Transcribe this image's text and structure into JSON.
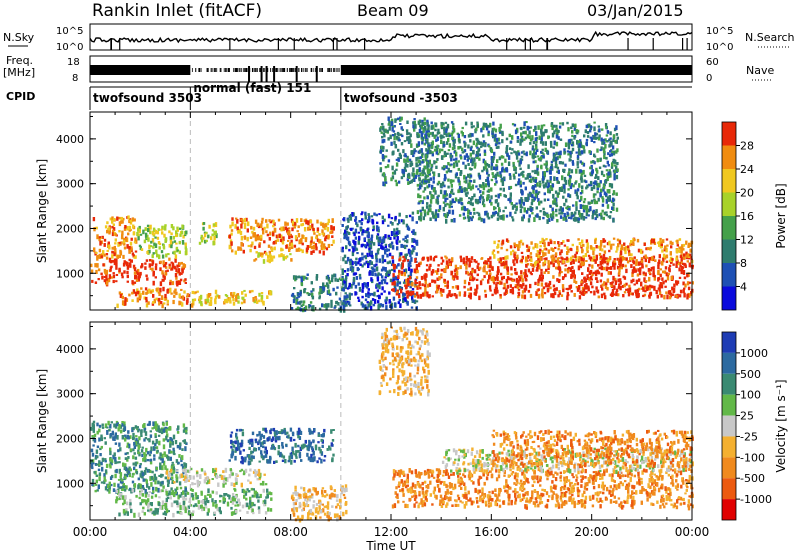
{
  "header": {
    "station": "Rankin Inlet (fitACF)",
    "beam": "Beam 09",
    "date": "03/Jan/2015"
  },
  "noise_panel": {
    "left_label": "N.Sky",
    "right_label": "N.Search",
    "left_ticks": [
      "10^5",
      "10^0"
    ],
    "right_ticks": [
      "10^5",
      "10^0"
    ]
  },
  "freq_panel": {
    "left_label_top": "Freq.",
    "left_label_bottom": "[MHz]",
    "left_ticks": [
      "18",
      "8"
    ],
    "right_label": "Nave",
    "right_ticks": [
      "60",
      "0"
    ]
  },
  "cpid_panel": {
    "label": "CPID",
    "modes": [
      {
        "name": "twofsound",
        "id": "3503",
        "start": 0.0,
        "end": 4.0
      },
      {
        "name": "normal (fast)",
        "id": "151",
        "start": 4.0,
        "end": 10.0
      },
      {
        "name": "twofsound",
        "id": "-3503",
        "start": 10.0,
        "end": 24.0
      }
    ]
  },
  "x_axis": {
    "label": "Time UT",
    "ticks": [
      "00:00",
      "04:00",
      "08:00",
      "12:00",
      "16:00",
      "20:00",
      "00:00"
    ],
    "range_hours": [
      0,
      24
    ]
  },
  "power_panel": {
    "ylabel": "Slant Range [km]",
    "yticks": [
      1000,
      2000,
      3000,
      4000
    ],
    "yrange": [
      180,
      4600
    ],
    "colorbar_label": "Power [dB]",
    "colorbar_ticks": [
      "4",
      "8",
      "12",
      "16",
      "20",
      "24",
      "28"
    ],
    "colors": [
      "#0a0adc",
      "#1e50b4",
      "#2e7c6e",
      "#44a04a",
      "#a8d22a",
      "#f0c820",
      "#f08c10",
      "#e82808"
    ]
  },
  "velocity_panel": {
    "ylabel": "Slant Range [km]",
    "yticks": [
      1000,
      2000,
      3000,
      4000
    ],
    "yrange": [
      180,
      4600
    ],
    "colorbar_label": "Velocity [m s⁻¹]",
    "colorbar_ticks": [
      "1000",
      "500",
      "100",
      "25",
      "-25",
      "-100",
      "-500",
      "-1000"
    ],
    "colors": [
      "#1e3cb4",
      "#2c6aa0",
      "#3a8a72",
      "#62b848",
      "#c8c8c8",
      "#f4b030",
      "#f08a1e",
      "#ec5a10",
      "#e00000"
    ]
  },
  "chart_data": {
    "type": "heatmap",
    "x_unit": "hours UT",
    "y_unit": "km",
    "power_regions": [
      {
        "t": [
          0.0,
          3.8
        ],
        "r": [
          800,
          1350
        ],
        "level": 7
      },
      {
        "t": [
          0.1,
          1.8
        ],
        "r": [
          1350,
          2300
        ],
        "level": 6
      },
      {
        "t": [
          1.8,
          3.8
        ],
        "r": [
          1400,
          2100
        ],
        "level": 4
      },
      {
        "t": [
          1.0,
          4.0
        ],
        "r": [
          320,
          700
        ],
        "level": 6
      },
      {
        "t": [
          4.0,
          7.2
        ],
        "r": [
          330,
          650
        ],
        "level": 5
      },
      {
        "t": [
          4.3,
          5.0
        ],
        "r": [
          1700,
          2150
        ],
        "level": 4
      },
      {
        "t": [
          5.5,
          9.7
        ],
        "r": [
          1500,
          2250
        ],
        "level": 6
      },
      {
        "t": [
          6.5,
          8.0
        ],
        "r": [
          1300,
          1500
        ],
        "level": 5
      },
      {
        "t": [
          8.0,
          10.2
        ],
        "r": [
          200,
          1000
        ],
        "level": 2
      },
      {
        "t": [
          10.0,
          13.0
        ],
        "r": [
          250,
          2400
        ],
        "level": 1
      },
      {
        "t": [
          11.5,
          13.5
        ],
        "r": [
          3000,
          4500
        ],
        "level": 2
      },
      {
        "t": [
          12.0,
          24.0
        ],
        "r": [
          500,
          1400
        ],
        "level": 7
      },
      {
        "t": [
          16.0,
          24.0
        ],
        "r": [
          1250,
          1800
        ],
        "level": 6
      },
      {
        "t": [
          13.0,
          21.0
        ],
        "r": [
          2200,
          4400
        ],
        "level": 2
      }
    ],
    "velocity_regions": [
      {
        "t": [
          0.0,
          3.8
        ],
        "r": [
          800,
          2400
        ],
        "level": 2
      },
      {
        "t": [
          1.0,
          4.0
        ],
        "r": [
          330,
          900
        ],
        "level": 3
      },
      {
        "t": [
          4.0,
          7.2
        ],
        "r": [
          350,
          900
        ],
        "level": 3
      },
      {
        "t": [
          3.0,
          7.0
        ],
        "r": [
          1000,
          1350
        ],
        "level": 4
      },
      {
        "t": [
          5.5,
          9.7
        ],
        "r": [
          1500,
          2250
        ],
        "level": 1
      },
      {
        "t": [
          8.0,
          10.2
        ],
        "r": [
          200,
          1000
        ],
        "level": 5
      },
      {
        "t": [
          11.5,
          13.5
        ],
        "r": [
          3000,
          4500
        ],
        "level": 5
      },
      {
        "t": [
          12.0,
          24.0
        ],
        "r": [
          500,
          1350
        ],
        "level": 6
      },
      {
        "t": [
          14.0,
          24.0
        ],
        "r": [
          1300,
          1800
        ],
        "level": 4
      },
      {
        "t": [
          16.0,
          24.0
        ],
        "r": [
          1400,
          2200
        ],
        "level": 6
      }
    ]
  }
}
